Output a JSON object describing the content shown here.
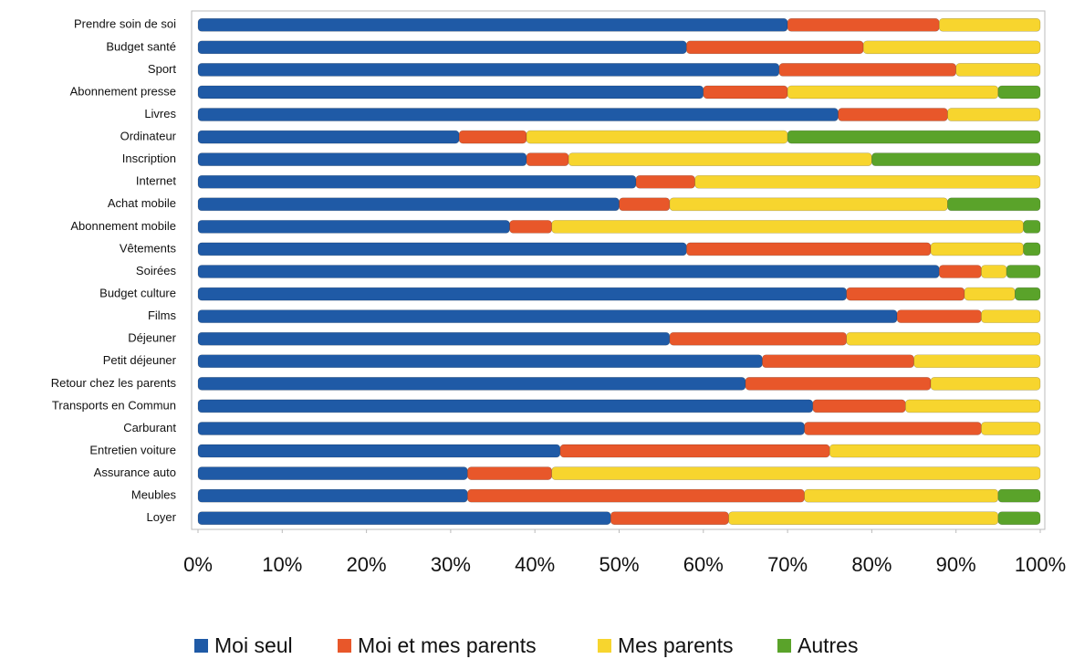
{
  "chart_data": {
    "type": "stacked_barh",
    "categories": [
      "Prendre soin de soi",
      "Budget santé",
      "Sport",
      "Abonnement presse",
      "Livres",
      "Ordinateur",
      "Inscription",
      "Internet",
      "Achat mobile",
      "Abonnement mobile",
      "Vêtements",
      "Soirées",
      "Budget culture",
      "Films",
      "Déjeuner",
      "Petit déjeuner",
      "Retour chez les parents",
      "Transports en Commun",
      "Carburant",
      "Entretien voiture",
      "Assurance auto",
      "Meubles",
      "Loyer"
    ],
    "series": [
      {
        "name": "Moi seul",
        "color": "#1f5aa6",
        "values": [
          70,
          58,
          69,
          60,
          76,
          31,
          39,
          52,
          50,
          37,
          58,
          88,
          77,
          83,
          56,
          67,
          65,
          73,
          72,
          43,
          32,
          32,
          49
        ]
      },
      {
        "name": "Moi et mes parents",
        "color": "#e8572a",
        "values": [
          18,
          21,
          21,
          10,
          13,
          8,
          5,
          7,
          6,
          5,
          29,
          5,
          14,
          10,
          21,
          18,
          22,
          11,
          21,
          32,
          10,
          40,
          14
        ]
      },
      {
        "name": "Mes parents",
        "color": "#f7d52e",
        "values": [
          12,
          21,
          10,
          25,
          11,
          31,
          36,
          41,
          33,
          56,
          11,
          3,
          6,
          7,
          23,
          15,
          13,
          16,
          7,
          25,
          58,
          23,
          32
        ]
      },
      {
        "name": "Autres",
        "color": "#5aa32a",
        "values": [
          0,
          0,
          0,
          5,
          0,
          30,
          20,
          0,
          11,
          2,
          2,
          4,
          3,
          0,
          0,
          0,
          0,
          0,
          0,
          0,
          0,
          5,
          5
        ]
      }
    ],
    "xlim": [
      0,
      100
    ],
    "xticks": [
      {
        "value": 0,
        "label": "0%"
      },
      {
        "value": 10,
        "label": "10%"
      },
      {
        "value": 20,
        "label": "20%"
      },
      {
        "value": 30,
        "label": "30%"
      },
      {
        "value": 40,
        "label": "40%"
      },
      {
        "value": 50,
        "label": "50%"
      },
      {
        "value": 60,
        "label": "60%"
      },
      {
        "value": 70,
        "label": "70%"
      },
      {
        "value": 80,
        "label": "80%"
      },
      {
        "value": 90,
        "label": "90%"
      },
      {
        "value": 100,
        "label": "100%"
      }
    ],
    "legend": "bottom"
  }
}
